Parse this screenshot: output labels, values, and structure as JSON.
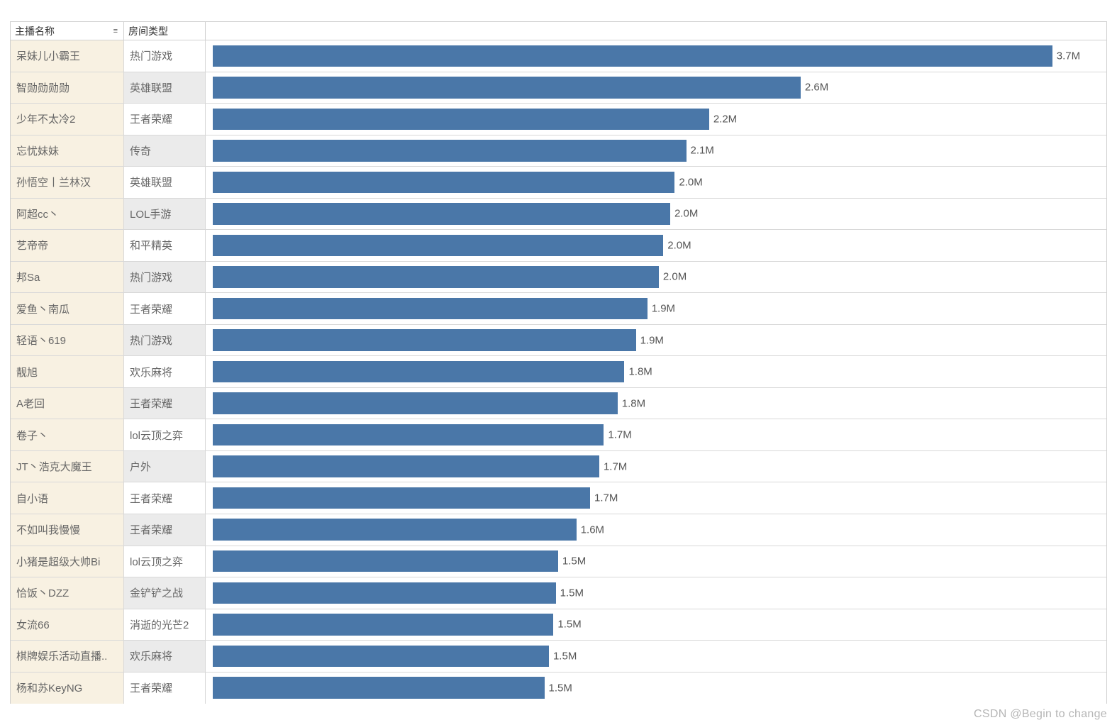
{
  "chart": {
    "type": "bar-horizontal",
    "bar_color": "#4a77a8",
    "header_bg": "#ffffff",
    "col1_bg": "#f8f1e2",
    "col2_bg_even": "#ffffff",
    "col2_bg_odd": "#ebebeb",
    "grid_color": "#d8d8d8",
    "text_color": "#666666",
    "label_color": "#555555",
    "font_size_header": 14,
    "font_size_cell": 15,
    "max_value": 3.7,
    "bar_area_padding_left": 10,
    "bar_full_ratio": 0.94,
    "columns": {
      "col1": {
        "label": "主播名称",
        "width": 160
      },
      "col2": {
        "label": "房间类型",
        "width": 115
      }
    },
    "rows": [
      {
        "name": "呆妹儿小霸王",
        "type": "热门游戏",
        "value": 3.7,
        "label": "3.7M"
      },
      {
        "name": "智勋勋勋勋",
        "type": "英雄联盟",
        "value": 2.6,
        "label": "2.6M"
      },
      {
        "name": "少年不太冷2",
        "type": "王者荣耀",
        "value": 2.2,
        "label": "2.2M"
      },
      {
        "name": "忘忧妹妹",
        "type": "传奇",
        "value": 2.1,
        "label": "2.1M"
      },
      {
        "name": "孙悟空丨兰林汉",
        "type": "英雄联盟",
        "value": 2.05,
        "label": "2.0M"
      },
      {
        "name": "阿超cc丶",
        "type": "LOL手游",
        "value": 2.03,
        "label": "2.0M"
      },
      {
        "name": "艺帝帝",
        "type": "和平精英",
        "value": 2.0,
        "label": "2.0M"
      },
      {
        "name": "邦Sa",
        "type": "热门游戏",
        "value": 1.98,
        "label": "2.0M"
      },
      {
        "name": "爱鱼丶南瓜",
        "type": "王者荣耀",
        "value": 1.93,
        "label": "1.9M"
      },
      {
        "name": "轻语丶619",
        "type": "热门游戏",
        "value": 1.88,
        "label": "1.9M"
      },
      {
        "name": "靓旭",
        "type": "欢乐麻将",
        "value": 1.83,
        "label": "1.8M"
      },
      {
        "name": "A老回",
        "type": "王者荣耀",
        "value": 1.8,
        "label": "1.8M"
      },
      {
        "name": "卷子丶",
        "type": "lol云顶之弈",
        "value": 1.74,
        "label": "1.7M"
      },
      {
        "name": "JT丶浩克大魔王",
        "type": "户外",
        "value": 1.72,
        "label": "1.7M"
      },
      {
        "name": "自小语",
        "type": "王者荣耀",
        "value": 1.68,
        "label": "1.7M"
      },
      {
        "name": "不如叫我慢慢",
        "type": "王者荣耀",
        "value": 1.62,
        "label": "1.6M"
      },
      {
        "name": "小猪是超级大帅Bi",
        "type": "lol云顶之弈",
        "value": 1.54,
        "label": "1.5M"
      },
      {
        "name": "恰饭丶DZZ",
        "type": "金铲铲之战",
        "value": 1.53,
        "label": "1.5M"
      },
      {
        "name": "女流66",
        "type": "消逝的光芒2",
        "value": 1.52,
        "label": "1.5M"
      },
      {
        "name": "棋牌娱乐活动直播..",
        "type": "欢乐麻将",
        "value": 1.5,
        "label": "1.5M"
      },
      {
        "name": "杨和苏KeyNG",
        "type": "王者荣耀",
        "value": 1.48,
        "label": "1.5M"
      }
    ]
  },
  "watermark": "CSDN @Begin to change"
}
